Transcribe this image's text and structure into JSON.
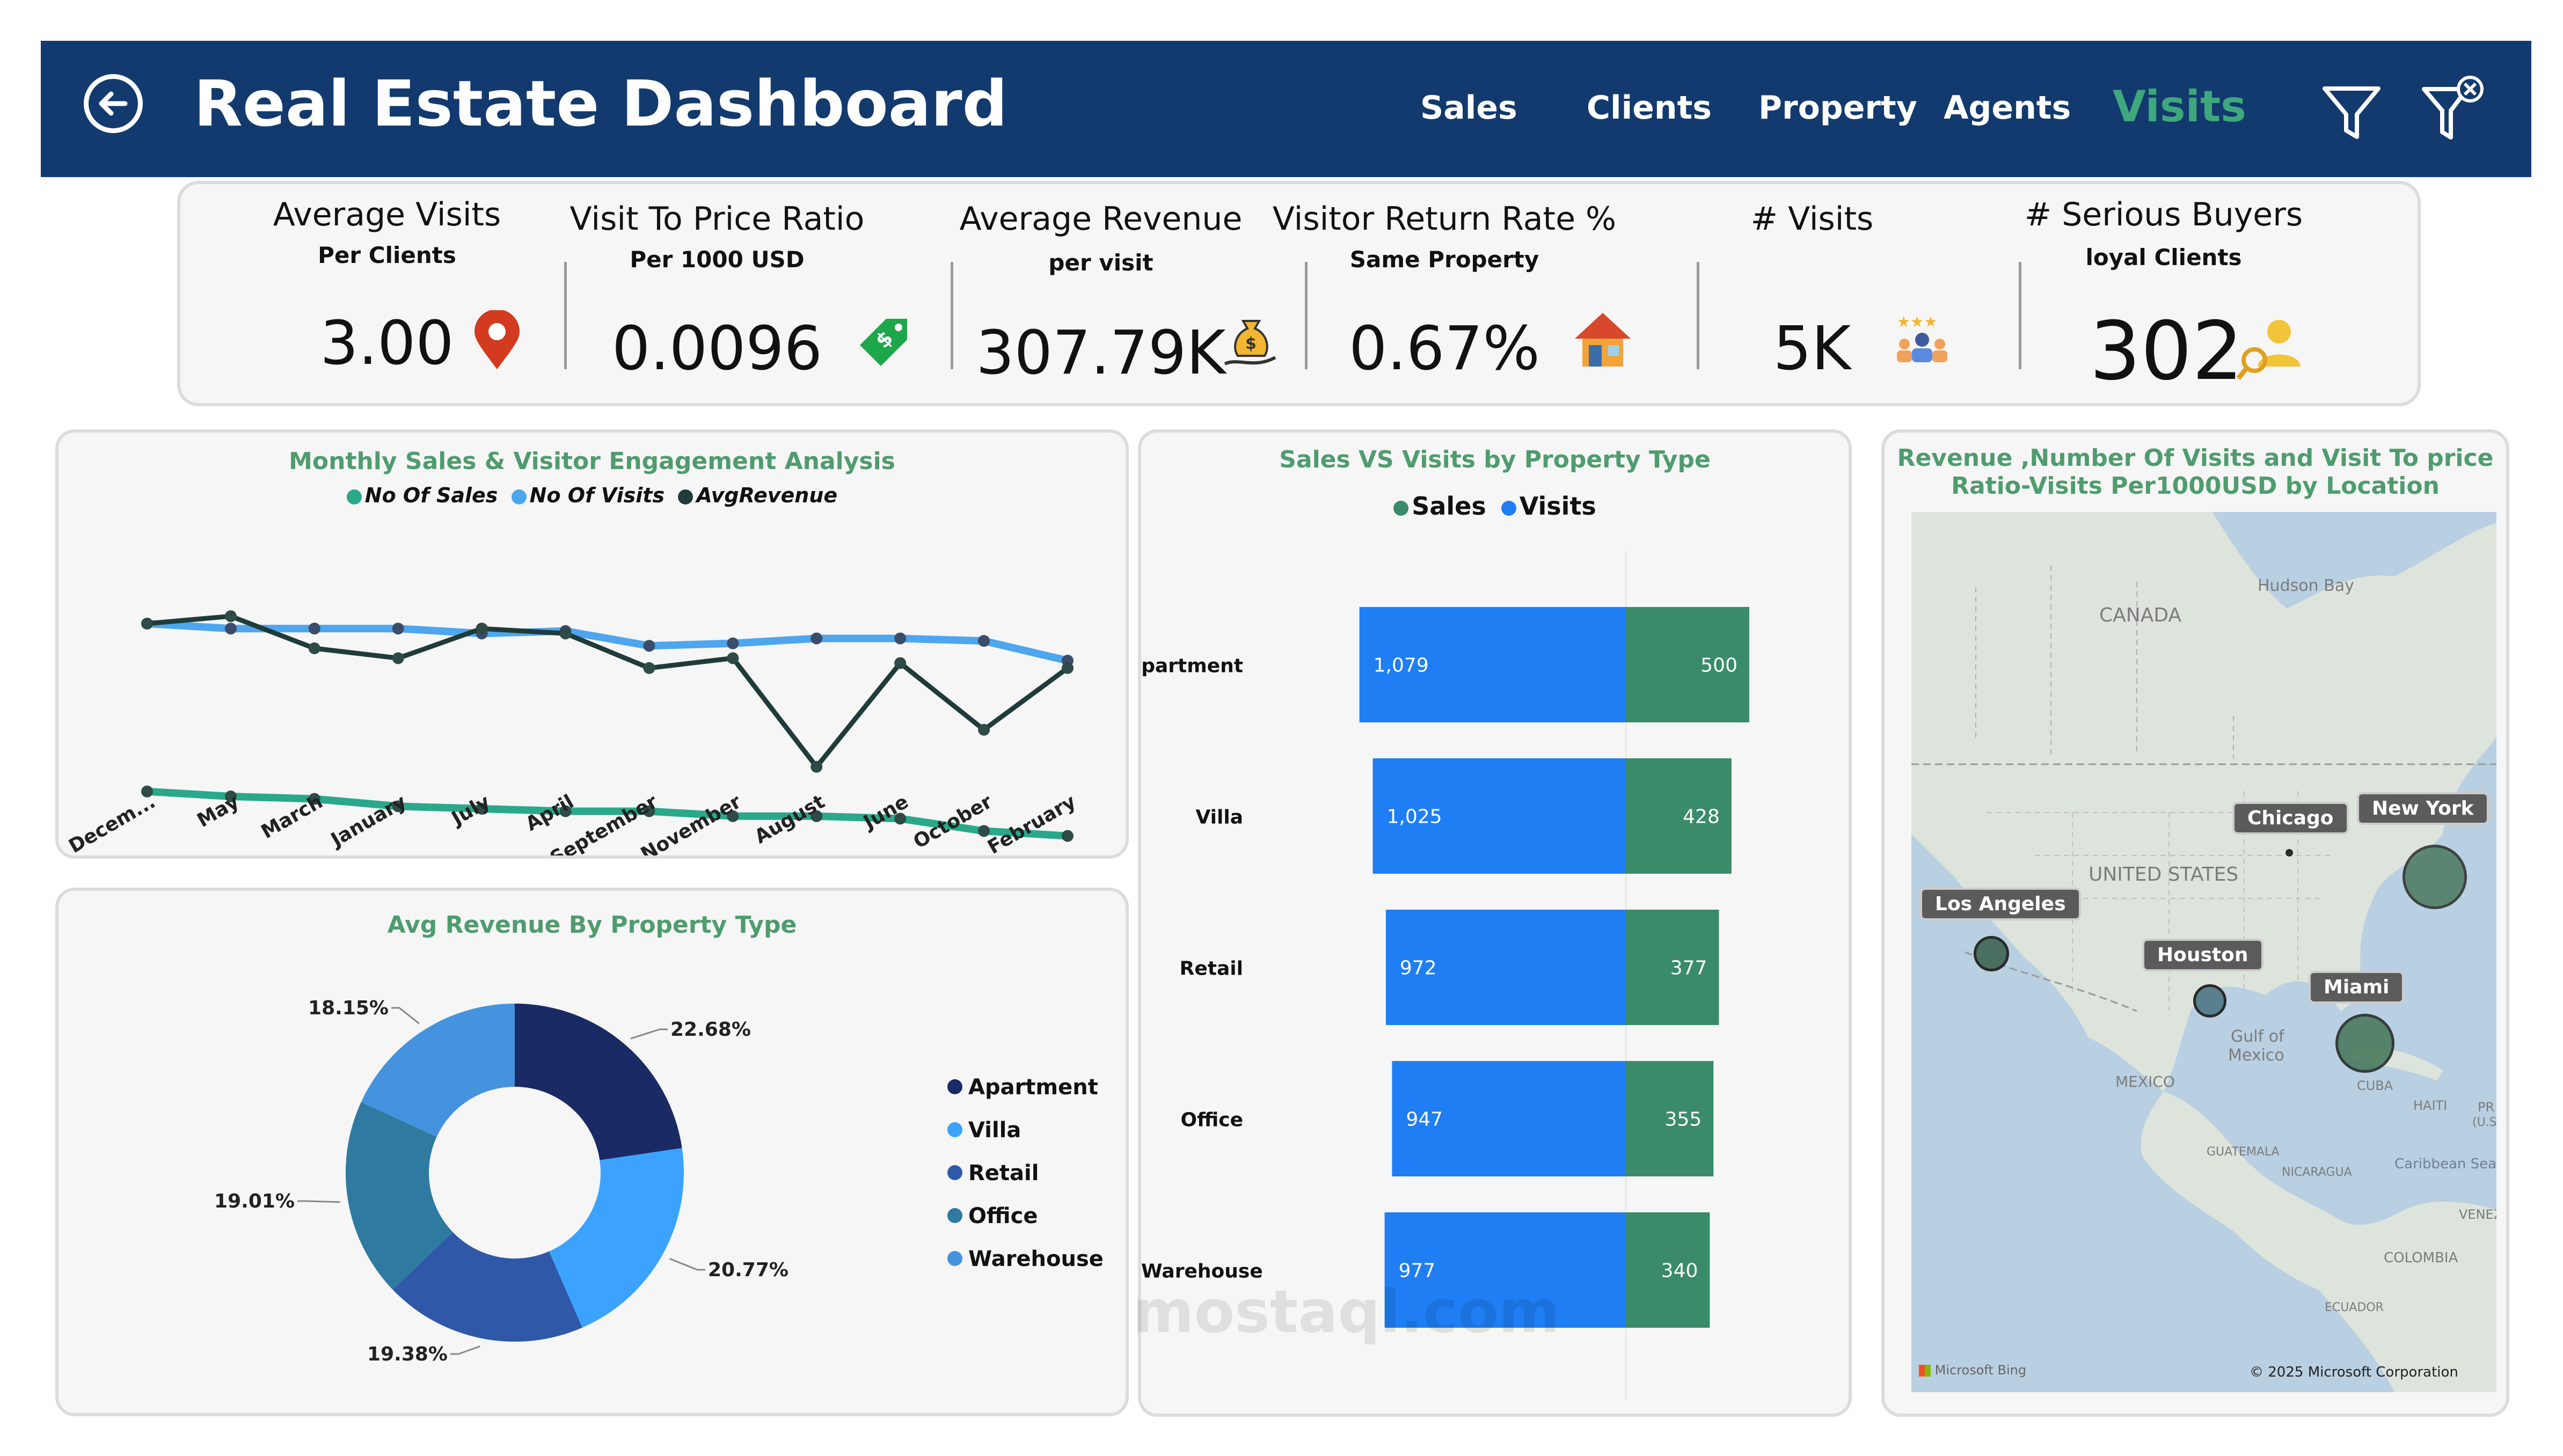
{
  "header": {
    "title": "Real Estate Dashboard",
    "nav": [
      "Sales",
      "Clients",
      "Property",
      "Agents",
      "Visits"
    ],
    "active_tab": "Visits",
    "icons": [
      "back-arrow-icon",
      "filter-icon",
      "clear-filter-icon"
    ]
  },
  "kpis": [
    {
      "title": "Average Visits",
      "subtitle": "Per Clients",
      "value": "3.00",
      "icon": "map-pin-icon"
    },
    {
      "title": "Visit To Price Ratio",
      "subtitle": "Per 1000 USD",
      "value": "0.0096",
      "icon": "price-tag-icon"
    },
    {
      "title": "Average Revenue",
      "subtitle": "per visit",
      "value": "307.79K",
      "icon": "money-bag-hand-icon"
    },
    {
      "title": "Visitor Return Rate %",
      "subtitle": "Same Property",
      "value": "0.67%",
      "icon": "house-icon"
    },
    {
      "title": "# Visits",
      "subtitle": "",
      "value": "5K",
      "icon": "rated-people-icon"
    },
    {
      "title": "# Serious Buyers",
      "subtitle": "loyal Clients",
      "value": "302",
      "icon": "key-person-icon"
    }
  ],
  "line_panel": {
    "title": "Monthly Sales & Visitor Engagement Analysis",
    "legend": [
      "No Of Sales",
      "No Of Visits",
      "AvgRevenue"
    ]
  },
  "bar_panel": {
    "title": "Sales VS Visits by Property Type",
    "legend": [
      "Sales",
      "Visits"
    ]
  },
  "donut_panel": {
    "title": "Avg Revenue By Property Type"
  },
  "map_panel": {
    "title_line1": "Revenue ,Number Of Visits and Visit To price",
    "title_line2": "Ratio-Visits Per1000USD by Location",
    "cities": [
      "Chicago",
      "New York",
      "Los Angeles",
      "Houston",
      "Miami"
    ],
    "labels": [
      "Hudson Bay",
      "CANADA",
      "UNITED STATES",
      "Gulf of",
      "Mexico",
      "MEXICO",
      "CUBA",
      "HAITI",
      "PR",
      "(U.S.)",
      "GUATEMALA",
      "NICARAGUA",
      "Caribbean Sea",
      "VENEZUE",
      "COLOMBIA",
      "ECUADOR"
    ],
    "attribution_left": "Microsoft Bing",
    "attribution_right": "© 2025 Microsoft Corporation"
  },
  "watermark": "mostaql.com",
  "colors": {
    "header_bg": "#123a6e",
    "accent_green": "#3ea87c",
    "sales_bar": "#1f7ef3",
    "visits_bar": "#3a8b6a",
    "line_sales": "#2aa88a",
    "line_visits": "#4da6ee",
    "line_revenue": "#1f3b3a"
  },
  "chart_data": [
    {
      "type": "line",
      "title": "Monthly Sales & Visitor Engagement Analysis",
      "categories": [
        "Decem...",
        "May",
        "March",
        "January",
        "July",
        "April",
        "September",
        "November",
        "August",
        "June",
        "October",
        "February"
      ],
      "series": [
        {
          "name": "No Of Visits",
          "values": [
            0.9,
            0.88,
            0.88,
            0.88,
            0.86,
            0.87,
            0.81,
            0.82,
            0.84,
            0.84,
            0.83,
            0.75
          ]
        },
        {
          "name": "AvgRevenue",
          "values": [
            0.9,
            0.93,
            0.8,
            0.76,
            0.88,
            0.86,
            0.72,
            0.76,
            0.32,
            0.74,
            0.47,
            0.72
          ]
        },
        {
          "name": "No Of Sales",
          "values": [
            0.22,
            0.2,
            0.19,
            0.16,
            0.15,
            0.14,
            0.14,
            0.12,
            0.12,
            0.11,
            0.06,
            0.04
          ]
        }
      ],
      "ylim": [
        0,
        1
      ]
    },
    {
      "type": "bar",
      "title": "Sales VS Visits by Property Type",
      "categories": [
        "Apartment",
        "Villa",
        "Retail",
        "Office",
        "Warehouse"
      ],
      "series": [
        {
          "name": "Sales",
          "values": [
            1079,
            1025,
            972,
            947,
            977
          ]
        },
        {
          "name": "Visits",
          "values": [
            500,
            428,
            377,
            355,
            340
          ]
        }
      ],
      "data_labels": {
        "Sales": [
          "1,079",
          "1,025",
          "972",
          "947",
          "977"
        ],
        "Visits": [
          "500",
          "428",
          "377",
          "355",
          "340"
        ]
      }
    },
    {
      "type": "pie",
      "title": "Avg Revenue By Property Type",
      "categories": [
        "Apartment",
        "Villa",
        "Retail",
        "Office",
        "Warehouse"
      ],
      "values": [
        22.68,
        20.77,
        19.38,
        19.01,
        18.15
      ],
      "labels": [
        "22.68%",
        "20.77%",
        "19.38%",
        "19.01%",
        "18.15%"
      ],
      "colors": [
        "#1a2a64",
        "#3ba3ff",
        "#2f59a8",
        "#2e7aa0",
        "#4593df"
      ],
      "legend_placement": "right"
    },
    {
      "type": "scatter",
      "title": "Revenue ,Number Of Visits and Visit To price Ratio-Visits Per1000USD by Location",
      "categories": [
        "Chicago",
        "New York",
        "Los Angeles",
        "Houston",
        "Miami"
      ],
      "bubble_size_rank": [
        1,
        5,
        3,
        2,
        4
      ]
    }
  ]
}
